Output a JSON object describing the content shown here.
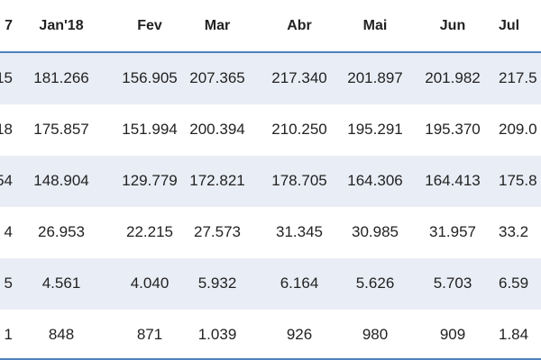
{
  "table": {
    "header": [
      "7",
      "Jan'18",
      "Fev",
      "Mar",
      "Abr",
      "Mai",
      "Jun",
      "Jul"
    ],
    "rows": [
      [
        "15",
        "181.266",
        "156.905",
        "207.365",
        "217.340",
        "201.897",
        "201.982",
        "217.5"
      ],
      [
        "18",
        "175.857",
        "151.994",
        "200.394",
        "210.250",
        "195.291",
        "195.370",
        "209.0"
      ],
      [
        "54",
        "148.904",
        "129.779",
        "172.821",
        "178.705",
        "164.306",
        "164.413",
        "175.8"
      ],
      [
        "4",
        "26.953",
        "22.215",
        "27.573",
        "31.345",
        "30.985",
        "31.957",
        "33.2"
      ],
      [
        "5",
        "4.561",
        "4.040",
        "5.932",
        "6.164",
        "5.626",
        "5.703",
        "6.59"
      ],
      [
        "1",
        "848",
        "871",
        "1.039",
        "926",
        "980",
        "909",
        "1.84"
      ]
    ]
  }
}
